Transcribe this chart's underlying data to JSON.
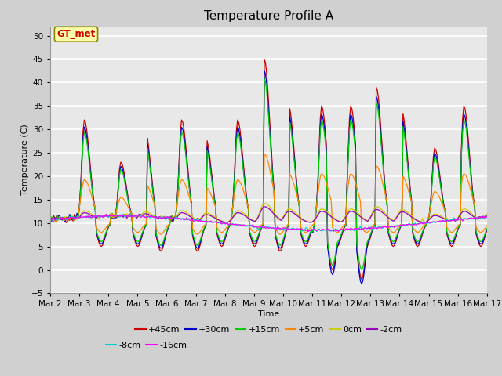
{
  "title": "Temperature Profile A",
  "xlabel": "Time",
  "ylabel": "Temperature (C)",
  "ylim": [
    -5,
    52
  ],
  "yticks": [
    -5,
    0,
    5,
    10,
    15,
    20,
    25,
    30,
    35,
    40,
    45,
    50
  ],
  "x_labels": [
    "Mar 2",
    "Mar 3",
    "Mar 4",
    "Mar 5",
    "Mar 6",
    "Mar 7",
    "Mar 8",
    "Mar 9",
    "Mar 10",
    "Mar 11",
    "Mar 12",
    "Mar 13",
    "Mar 14",
    "Mar 15",
    "Mar 16",
    "Mar 17"
  ],
  "series_labels": [
    "+45cm",
    "+30cm",
    "+15cm",
    "+5cm",
    "0cm",
    "-2cm",
    "-8cm",
    "-16cm"
  ],
  "series_colors": [
    "#cc0000",
    "#0000cc",
    "#00cc00",
    "#ff8800",
    "#cccc00",
    "#9900bb",
    "#00cccc",
    "#ff00ff"
  ],
  "annotation_text": "GT_met",
  "annotation_bg": "#ffffaa",
  "annotation_border": "#888800",
  "annotation_text_color": "#cc0000",
  "fig_bg_color": "#d0d0d0",
  "plot_bg_color": "#e8e8e8",
  "grid_color": "#ffffff",
  "title_fontsize": 11,
  "label_fontsize": 8,
  "tick_fontsize": 7.5,
  "legend_fontsize": 8
}
